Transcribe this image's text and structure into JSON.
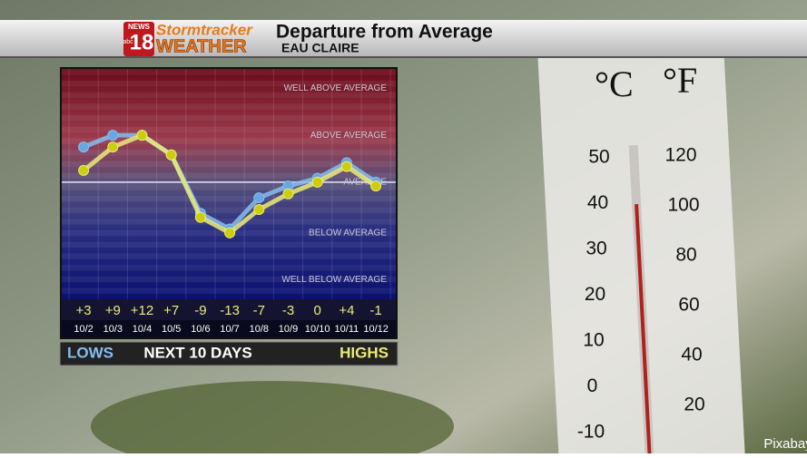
{
  "header": {
    "logo_news": "NEWS",
    "logo_number": "18",
    "logo_network": "abc",
    "logo_top": "Stormtracker",
    "logo_bottom": "WEATHER",
    "location": "EAU CLAIRE"
  },
  "chart_data": {
    "type": "line",
    "title": "Departure from Average",
    "x_label": "NEXT 10 DAYS",
    "categories": [
      "10/2",
      "10/3",
      "10/4",
      "10/5",
      "10/6",
      "10/7",
      "10/8",
      "10/9",
      "10/10",
      "10/11",
      "10/12"
    ],
    "series": [
      {
        "name": "LOWS",
        "color": "#86bdf0",
        "values": [
          9,
          12,
          12,
          7,
          -8,
          -12,
          -4,
          -1,
          1,
          5,
          0
        ]
      },
      {
        "name": "HIGHS",
        "color": "#eaeb78",
        "values": [
          3,
          9,
          12,
          7,
          -9,
          -13,
          -7,
          -3,
          0,
          4,
          -1
        ],
        "value_labels": [
          "+3",
          "+9",
          "+12",
          "+7",
          "-9",
          "-13",
          "-7",
          "-3",
          "0",
          "+4",
          "-1"
        ]
      }
    ],
    "ylim": [
      -30,
      29
    ],
    "yticks": [
      {
        "value": -25,
        "label": "WELL BELOW AVERAGE"
      },
      {
        "value": -13,
        "label": "BELOW AVERAGE"
      },
      {
        "value": 0,
        "label": "AVERAGE"
      },
      {
        "value": 12,
        "label": "ABOVE AVERAGE"
      },
      {
        "value": 24,
        "label": "WELL ABOVE AVERAGE"
      }
    ]
  },
  "background": {
    "celsius_unit": "°C",
    "fahrenheit_unit": "°F",
    "celsius": [
      "50",
      "40",
      "30",
      "20",
      "10",
      "0",
      "-10"
    ],
    "fahrenheit": [
      "120",
      "100",
      "80",
      "60",
      "40",
      "20"
    ],
    "credit": "Pixabay"
  }
}
